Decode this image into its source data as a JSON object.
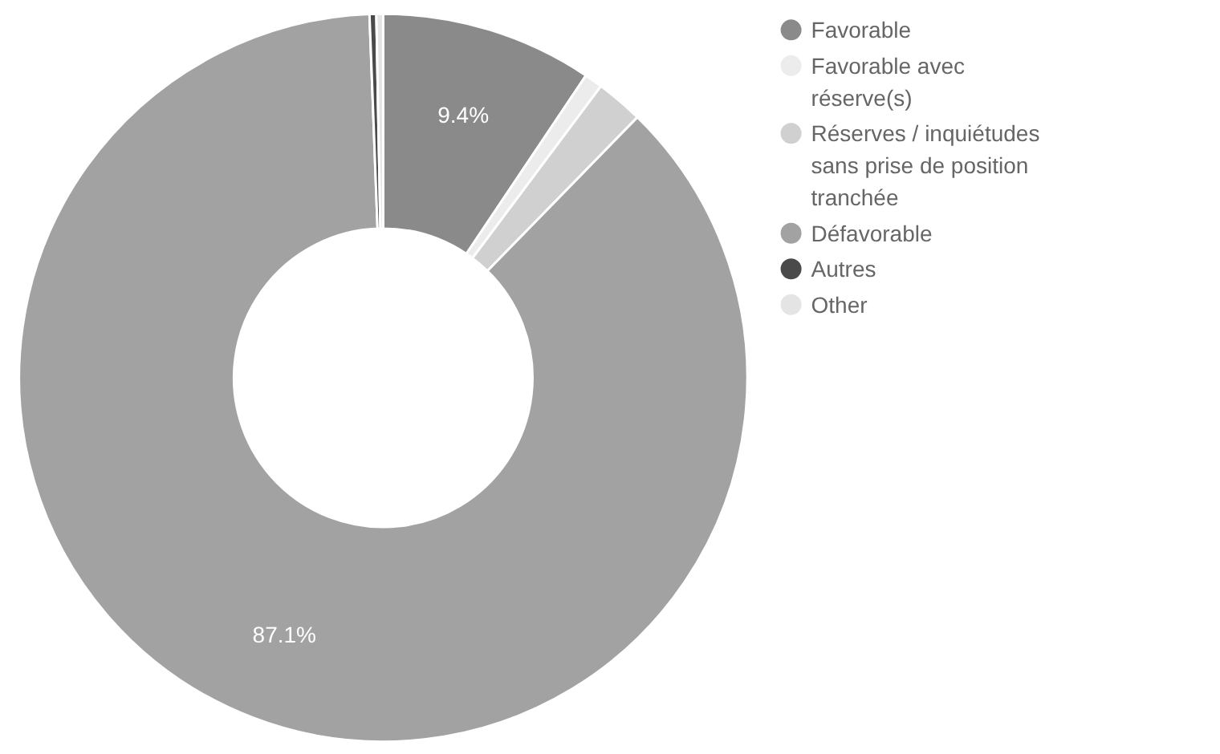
{
  "chart_data": {
    "type": "donut",
    "categories": [
      "Favorable",
      "Favorable avec réserve(s)",
      "Réserves / inquiétudes sans prise de position tranchée",
      "Défavorable",
      "Autres",
      "Other"
    ],
    "values": [
      9.4,
      0.8,
      2.1,
      87.1,
      0.3,
      0.3
    ],
    "colors": [
      "#8a8a8a",
      "#ececec",
      "#d0d0d0",
      "#a2a2a2",
      "#4a4a4a",
      "#e4e4e4"
    ],
    "value_labels": [
      "9.4%",
      null,
      null,
      "87.1%",
      null,
      null
    ],
    "legend": "right"
  }
}
